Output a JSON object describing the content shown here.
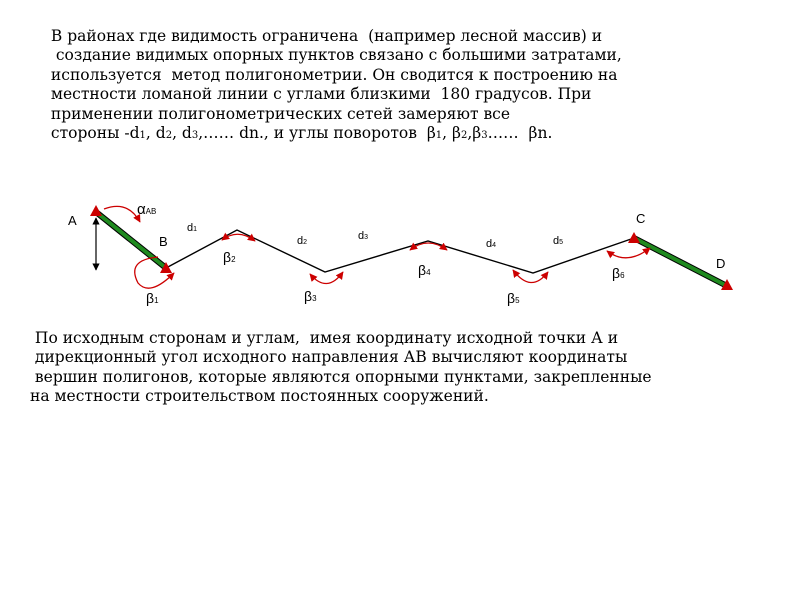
{
  "intro_lines": [
    " В районах где видимость ограничена  (например лесной массив) и",
    "  создание видимых опорных пунктов связано с большими затратами,",
    " используется  метод полигонометрии. Он сводится к построению на",
    " местности ломаной линии с углами близкими  180 градусов. При",
    " применении полигонометрических сетей замеряют все"
  ],
  "sides_line": {
    "prefix": " стороны -d",
    "s1": "1",
    "t1": ", d",
    "s2": "2",
    "t2": ", d",
    "s3": "3",
    "t3": ",…… dn., и углы поворотов  β",
    "s4": "1",
    "t4": ", β",
    "s5": "2",
    "t5": ",β",
    "s6": "3",
    "t6": "……  βn."
  },
  "outro_lines": [
    " По исходным сторонам и углам,  имея координату исходной точки А и",
    " дирекционный угол исходного направления АВ вычисляют координаты",
    " вершин полигонов, которые являются опорными пунктами, закрепленные",
    "на местности строительством постоянных сооружений."
  ],
  "diagram": {
    "points": {
      "A": "A",
      "B": "B",
      "C": "C",
      "D": "D"
    },
    "azimuth": {
      "symbol": "α",
      "sub": "AB"
    },
    "sides": [
      {
        "base": "d",
        "sub": "1"
      },
      {
        "base": "d",
        "sub": "2"
      },
      {
        "base": "d",
        "sub": "3"
      },
      {
        "base": "d",
        "sub": "4"
      },
      {
        "base": "d",
        "sub": "5"
      }
    ],
    "angles": [
      {
        "base": "β",
        "sub": "1"
      },
      {
        "base": "β",
        "sub": "2"
      },
      {
        "base": "β",
        "sub": "3"
      },
      {
        "base": "β",
        "sub": "4"
      },
      {
        "base": "β",
        "sub": "5"
      },
      {
        "base": "β",
        "sub": "6"
      }
    ],
    "colors": {
      "known_side": "#1f8a1f",
      "marker": "#cc0000",
      "arrow": "#cc0000",
      "traverse": "#000000"
    }
  }
}
